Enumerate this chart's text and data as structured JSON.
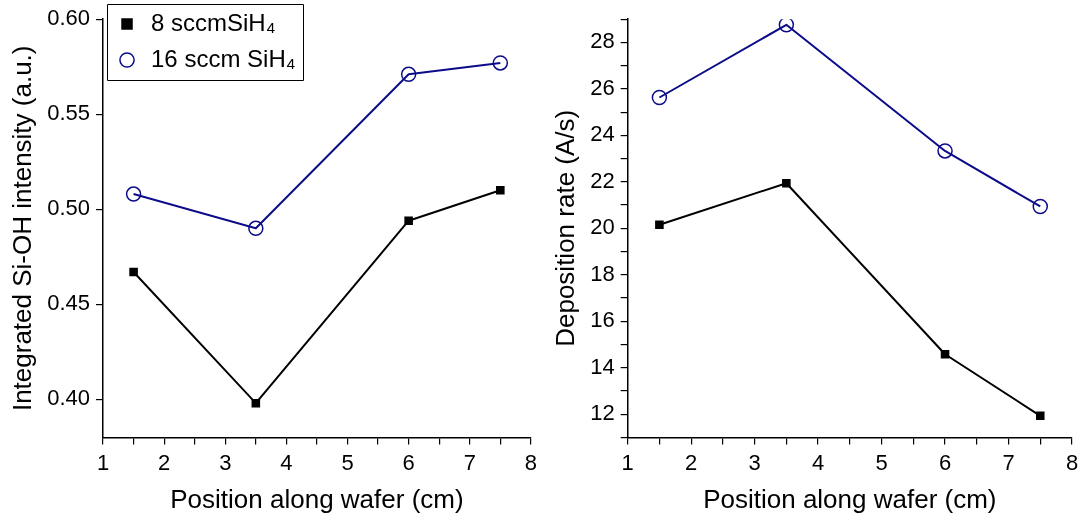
{
  "chart_data": [
    {
      "type": "line",
      "xlabel": "Position along wafer (cm)",
      "ylabel": "Integrated Si-OH intensity (a.u.)",
      "x": [
        1.5,
        3.5,
        6,
        7.5
      ],
      "series": [
        {
          "name": "8 sccmSiH₄",
          "color": "#000000",
          "marker": "square",
          "values": [
            0.467,
            0.398,
            0.494,
            0.51
          ]
        },
        {
          "name": "16 sccm SiH₄",
          "color": "#0c0c8a",
          "marker": "circle",
          "values": [
            0.508,
            0.49,
            0.571,
            0.577
          ]
        }
      ],
      "xlim": [
        1,
        8
      ],
      "xticks": [
        1,
        {
          "value": 1.5,
          "label": null
        },
        2,
        {
          "value": 2.5,
          "label": null
        },
        3,
        {
          "value": 3.5,
          "label": null
        },
        4,
        {
          "value": 4.5,
          "label": null
        },
        5,
        {
          "value": 5.5,
          "label": null
        },
        6,
        {
          "value": 6.5,
          "label": null
        },
        7,
        {
          "value": 7.5,
          "label": null
        },
        8
      ],
      "ylim": [
        0.38,
        0.6
      ],
      "yticks": [
        {
          "value": 0.4,
          "label": "0.40"
        },
        {
          "value": 0.45,
          "label": "0.45"
        },
        {
          "value": 0.5,
          "label": "0.50"
        },
        {
          "value": 0.55,
          "label": "0.55"
        },
        {
          "value": 0.6,
          "label": "0.60"
        }
      ],
      "grid": false,
      "legend": "top left",
      "line_style": "solid"
    },
    {
      "type": "line",
      "xlabel": "Position along wafer (cm)",
      "ylabel": "Deposition rate (A/s)",
      "x": [
        1.5,
        3.5,
        6,
        7.5
      ],
      "series": [
        {
          "color": "#000000",
          "marker": "square",
          "values": [
            20.15,
            21.94,
            14.58,
            11.93
          ]
        },
        {
          "color": "#0c0c8a",
          "marker": "circle",
          "values": [
            25.63,
            28.76,
            23.33,
            20.94
          ]
        }
      ],
      "xlim": [
        1,
        8
      ],
      "xticks": [
        1,
        {
          "value": 1.5,
          "label": null
        },
        2,
        {
          "value": 2.5,
          "label": null
        },
        3,
        {
          "value": 3.5,
          "label": null
        },
        4,
        {
          "value": 4.5,
          "label": null
        },
        5,
        {
          "value": 5.5,
          "label": null
        },
        6,
        {
          "value": 6.5,
          "label": null
        },
        7,
        {
          "value": 7.5,
          "label": null
        },
        8
      ],
      "ylim": [
        11,
        29
      ],
      "yticks": [
        {
          "value": 11,
          "label": null
        },
        12,
        {
          "value": 13,
          "label": null
        },
        14,
        {
          "value": 15,
          "label": null
        },
        16,
        {
          "value": 17,
          "label": null
        },
        18,
        {
          "value": 19,
          "label": null
        },
        20,
        {
          "value": 21,
          "label": null
        },
        22,
        {
          "value": 23,
          "label": null
        },
        24,
        {
          "value": 25,
          "label": null
        },
        26,
        {
          "value": 27,
          "label": null
        },
        28,
        {
          "value": 29,
          "label": null
        }
      ],
      "grid": false,
      "legend": false,
      "line_style": "solid"
    }
  ]
}
